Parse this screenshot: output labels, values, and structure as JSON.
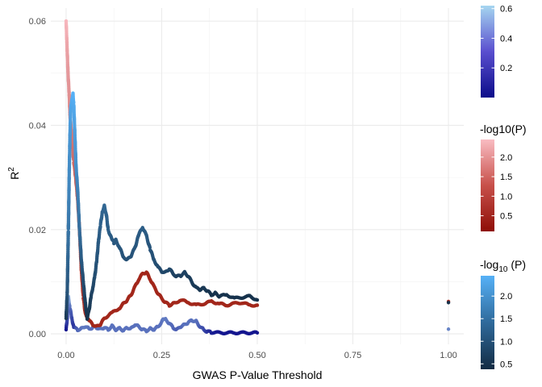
{
  "chart_data": {
    "type": "scatter",
    "title": "",
    "xlabel": "GWAS P-Value Threshold",
    "ylabel": "R²",
    "xlim": [
      -0.04,
      1.04
    ],
    "ylim": [
      -0.002,
      0.0625
    ],
    "x_ticks": [
      {
        "value": 0.0,
        "label": "0.00"
      },
      {
        "value": 0.25,
        "label": "0.25"
      },
      {
        "value": 0.5,
        "label": "0.50"
      },
      {
        "value": 0.75,
        "label": "0.75"
      },
      {
        "value": 1.0,
        "label": "1.00"
      }
    ],
    "y_ticks": [
      {
        "value": 0.0,
        "label": "0.00"
      },
      {
        "value": 0.02,
        "label": "0.02"
      },
      {
        "value": 0.04,
        "label": "0.04"
      },
      {
        "value": 0.06,
        "label": "0.06"
      }
    ],
    "grid": true,
    "legend_position": "right",
    "series": [
      {
        "color_low": "#0c0c8a",
        "color_high": "#a6d6f0",
        "points": [
          [
            0.0,
            0.0008
          ],
          [
            0.003,
            0.003
          ],
          [
            0.006,
            0.007
          ],
          [
            0.01,
            0.005
          ],
          [
            0.015,
            0.003
          ],
          [
            0.02,
            0.0012
          ],
          [
            0.03,
            0.0008
          ],
          [
            0.04,
            0.001
          ],
          [
            0.05,
            0.0014
          ],
          [
            0.06,
            0.001
          ],
          [
            0.07,
            0.0012
          ],
          [
            0.08,
            0.0012
          ],
          [
            0.09,
            0.0009
          ],
          [
            0.1,
            0.0012
          ],
          [
            0.11,
            0.0008
          ],
          [
            0.12,
            0.0015
          ],
          [
            0.13,
            0.0008
          ],
          [
            0.14,
            0.0011
          ],
          [
            0.15,
            0.0006
          ],
          [
            0.16,
            0.0012
          ],
          [
            0.17,
            0.001
          ],
          [
            0.18,
            0.0018
          ],
          [
            0.19,
            0.0014
          ],
          [
            0.2,
            0.0008
          ],
          [
            0.21,
            0.0006
          ],
          [
            0.22,
            0.001
          ],
          [
            0.23,
            0.0008
          ],
          [
            0.24,
            0.0014
          ],
          [
            0.25,
            0.0022
          ],
          [
            0.255,
            0.003
          ],
          [
            0.26,
            0.0028
          ],
          [
            0.27,
            0.002
          ],
          [
            0.28,
            0.0012
          ],
          [
            0.29,
            0.0008
          ],
          [
            0.3,
            0.0014
          ],
          [
            0.31,
            0.0018
          ],
          [
            0.32,
            0.0022
          ],
          [
            0.33,
            0.0026
          ],
          [
            0.34,
            0.0024
          ],
          [
            0.35,
            0.0014
          ],
          [
            0.36,
            0.0008
          ],
          [
            0.37,
            0.0004
          ],
          [
            0.38,
            0.0003
          ],
          [
            0.4,
            0.0002
          ],
          [
            0.42,
            0.0002
          ],
          [
            0.44,
            0.0002
          ],
          [
            0.46,
            0.0002
          ],
          [
            0.48,
            0.0002
          ],
          [
            0.5,
            0.0002
          ],
          [
            1.0,
            0.0009
          ]
        ],
        "points_color_t": [
          0.05,
          0.3,
          0.8,
          0.5,
          0.3,
          0.2,
          0.45,
          0.5,
          0.55,
          0.5,
          0.5,
          0.5,
          0.5,
          0.5,
          0.5,
          0.5,
          0.5,
          0.5,
          0.5,
          0.5,
          0.5,
          0.5,
          0.5,
          0.5,
          0.5,
          0.5,
          0.5,
          0.5,
          0.5,
          0.55,
          0.55,
          0.5,
          0.45,
          0.4,
          0.45,
          0.5,
          0.5,
          0.5,
          0.5,
          0.4,
          0.3,
          0.2,
          0.1,
          0.05,
          0.05,
          0.05,
          0.05,
          0.05,
          0.05,
          0.6
        ]
      },
      {
        "color_low": "#9e1f12",
        "color_high": "#f7b7be",
        "points": [
          [
            0.0,
            0.06
          ],
          [
            0.002,
            0.056
          ],
          [
            0.003,
            0.054
          ],
          [
            0.005,
            0.05
          ],
          [
            0.008,
            0.046
          ],
          [
            0.01,
            0.042
          ],
          [
            0.015,
            0.038
          ],
          [
            0.02,
            0.033
          ],
          [
            0.025,
            0.03
          ],
          [
            0.03,
            0.026
          ],
          [
            0.035,
            0.02
          ],
          [
            0.04,
            0.012
          ],
          [
            0.045,
            0.007
          ],
          [
            0.05,
            0.004
          ],
          [
            0.06,
            0.0025
          ],
          [
            0.07,
            0.0018
          ],
          [
            0.08,
            0.0014
          ],
          [
            0.09,
            0.0018
          ],
          [
            0.1,
            0.003
          ],
          [
            0.12,
            0.004
          ],
          [
            0.14,
            0.005
          ],
          [
            0.15,
            0.0058
          ],
          [
            0.16,
            0.0065
          ],
          [
            0.17,
            0.0075
          ],
          [
            0.18,
            0.009
          ],
          [
            0.19,
            0.0105
          ],
          [
            0.2,
            0.0115
          ],
          [
            0.21,
            0.0118
          ],
          [
            0.22,
            0.0105
          ],
          [
            0.23,
            0.009
          ],
          [
            0.24,
            0.0078
          ],
          [
            0.25,
            0.0068
          ],
          [
            0.26,
            0.006
          ],
          [
            0.27,
            0.0055
          ],
          [
            0.28,
            0.0058
          ],
          [
            0.3,
            0.0065
          ],
          [
            0.32,
            0.006
          ],
          [
            0.34,
            0.0055
          ],
          [
            0.36,
            0.0058
          ],
          [
            0.38,
            0.0062
          ],
          [
            0.4,
            0.0058
          ],
          [
            0.42,
            0.0055
          ],
          [
            0.44,
            0.0058
          ],
          [
            0.46,
            0.006
          ],
          [
            0.48,
            0.0055
          ],
          [
            0.5,
            0.0055
          ],
          [
            1.0,
            0.0062
          ]
        ],
        "points_color_t": [
          1.0,
          0.9,
          0.85,
          0.8,
          0.75,
          0.7,
          0.6,
          0.5,
          0.45,
          0.4,
          0.3,
          0.2,
          0.15,
          0.1,
          0.05,
          0.05,
          0.05,
          0.05,
          0.05,
          0.05,
          0.05,
          0.05,
          0.05,
          0.05,
          0.05,
          0.05,
          0.05,
          0.05,
          0.05,
          0.05,
          0.05,
          0.05,
          0.05,
          0.05,
          0.05,
          0.05,
          0.05,
          0.05,
          0.05,
          0.05,
          0.05,
          0.05,
          0.05,
          0.05,
          0.05,
          0.05,
          0.1
        ]
      },
      {
        "color_low": "#132b43",
        "color_high": "#56b1f7",
        "points": [
          [
            0.0,
            0.003
          ],
          [
            0.003,
            0.008
          ],
          [
            0.006,
            0.02
          ],
          [
            0.008,
            0.03
          ],
          [
            0.01,
            0.038
          ],
          [
            0.012,
            0.043
          ],
          [
            0.015,
            0.045
          ],
          [
            0.018,
            0.046
          ],
          [
            0.02,
            0.044
          ],
          [
            0.023,
            0.038
          ],
          [
            0.026,
            0.032
          ],
          [
            0.03,
            0.028
          ],
          [
            0.035,
            0.02
          ],
          [
            0.04,
            0.014
          ],
          [
            0.045,
            0.01
          ],
          [
            0.05,
            0.006
          ],
          [
            0.055,
            0.003
          ],
          [
            0.06,
            0.0045
          ],
          [
            0.065,
            0.007
          ],
          [
            0.07,
            0.009
          ],
          [
            0.075,
            0.011
          ],
          [
            0.08,
            0.014
          ],
          [
            0.085,
            0.018
          ],
          [
            0.09,
            0.021
          ],
          [
            0.095,
            0.0235
          ],
          [
            0.1,
            0.0245
          ],
          [
            0.105,
            0.023
          ],
          [
            0.11,
            0.02
          ],
          [
            0.12,
            0.018
          ],
          [
            0.125,
            0.0175
          ],
          [
            0.13,
            0.018
          ],
          [
            0.14,
            0.0165
          ],
          [
            0.15,
            0.0148
          ],
          [
            0.16,
            0.0142
          ],
          [
            0.17,
            0.015
          ],
          [
            0.18,
            0.0165
          ],
          [
            0.19,
            0.019
          ],
          [
            0.2,
            0.0205
          ],
          [
            0.21,
            0.0188
          ],
          [
            0.22,
            0.0162
          ],
          [
            0.23,
            0.0142
          ],
          [
            0.24,
            0.0128
          ],
          [
            0.25,
            0.012
          ],
          [
            0.26,
            0.0118
          ],
          [
            0.27,
            0.0125
          ],
          [
            0.28,
            0.0115
          ],
          [
            0.29,
            0.011
          ],
          [
            0.3,
            0.0112
          ],
          [
            0.31,
            0.0118
          ],
          [
            0.32,
            0.011
          ],
          [
            0.33,
            0.0098
          ],
          [
            0.34,
            0.0088
          ],
          [
            0.35,
            0.0085
          ],
          [
            0.36,
            0.0088
          ],
          [
            0.37,
            0.0082
          ],
          [
            0.38,
            0.0075
          ],
          [
            0.39,
            0.0078
          ],
          [
            0.4,
            0.0072
          ],
          [
            0.42,
            0.0075
          ],
          [
            0.44,
            0.0068
          ],
          [
            0.46,
            0.007
          ],
          [
            0.48,
            0.0072
          ],
          [
            0.5,
            0.0065
          ],
          [
            1.0,
            0.006
          ]
        ],
        "points_color_t": [
          0.1,
          0.3,
          0.55,
          0.7,
          0.8,
          0.9,
          0.95,
          1.0,
          0.95,
          0.85,
          0.75,
          0.65,
          0.5,
          0.35,
          0.25,
          0.15,
          0.05,
          0.1,
          0.15,
          0.2,
          0.25,
          0.3,
          0.35,
          0.4,
          0.42,
          0.45,
          0.42,
          0.38,
          0.35,
          0.33,
          0.35,
          0.32,
          0.3,
          0.28,
          0.3,
          0.32,
          0.35,
          0.38,
          0.35,
          0.3,
          0.28,
          0.25,
          0.22,
          0.2,
          0.22,
          0.18,
          0.15,
          0.15,
          0.18,
          0.15,
          0.12,
          0.1,
          0.08,
          0.1,
          0.08,
          0.05,
          0.06,
          0.05,
          0.05,
          0.05,
          0.05,
          0.05,
          0.05,
          0.05
        ]
      }
    ],
    "legends": [
      {
        "title": "",
        "title_sub": "",
        "title_suffix": "",
        "colors": [
          "#0c0c8a",
          "#5a4fcf",
          "#a6d6f0"
        ],
        "min": 0.0,
        "max": 0.62,
        "ticks": [
          {
            "value": 0.2,
            "label": "0.2"
          },
          {
            "value": 0.4,
            "label": "0.4"
          },
          {
            "value": 0.6,
            "label": "0.6"
          }
        ]
      },
      {
        "title": "-log10(P)",
        "title_sub": "",
        "title_suffix": "",
        "colors": [
          "#8f0e07",
          "#c8504a",
          "#f9bcc2"
        ],
        "min": 0.1,
        "max": 2.45,
        "ticks": [
          {
            "value": 0.5,
            "label": "0.5"
          },
          {
            "value": 1.0,
            "label": "1.0"
          },
          {
            "value": 1.5,
            "label": "1.5"
          },
          {
            "value": 2.0,
            "label": "2.0"
          }
        ]
      },
      {
        "title": "-log",
        "title_sub": "10",
        "title_suffix": " (P)",
        "colors": [
          "#132b43",
          "#2f6a9b",
          "#56b1f7"
        ],
        "min": 0.38,
        "max": 2.45,
        "ticks": [
          {
            "value": 0.5,
            "label": "0.5"
          },
          {
            "value": 1.0,
            "label": "1.0"
          },
          {
            "value": 1.5,
            "label": "1.5"
          },
          {
            "value": 2.0,
            "label": "2.0"
          }
        ]
      }
    ]
  }
}
